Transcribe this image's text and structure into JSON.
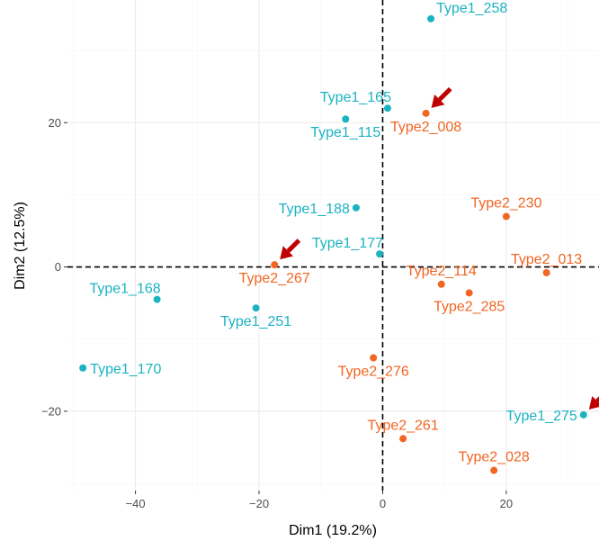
{
  "chart_data": {
    "type": "scatter",
    "title": "",
    "xlabel": "Dim1 (19.2%)",
    "ylabel": "Dim2 (12.5%)",
    "xlim": [
      -51,
      35
    ],
    "ylim": [
      -31,
      37
    ],
    "xticks": [
      -40,
      -20,
      0,
      20
    ],
    "xtick_labels": [
      "−40",
      "−20",
      "0",
      "20"
    ],
    "yticks": [
      -20,
      0,
      20
    ],
    "ytick_labels": [
      "−20",
      "0",
      "20"
    ],
    "grid": true,
    "reference_lines": {
      "x": 0,
      "y": 0,
      "style": "dashed"
    },
    "colors": {
      "Type1": "#1bb3c2",
      "Type2": "#f26522",
      "arrow": "#c00000"
    },
    "points": [
      {
        "label": "Type1_258",
        "group": "Type1",
        "x": 7.8,
        "y": 34.4,
        "label_pos": "upper-right"
      },
      {
        "label": "Type1_165",
        "group": "Type1",
        "x": 0.8,
        "y": 22.0,
        "label_pos": "upper-left"
      },
      {
        "label": "Type1_115",
        "group": "Type1",
        "x": -6.0,
        "y": 20.5,
        "label_pos": "lower-center"
      },
      {
        "label": "Type2_008",
        "group": "Type2",
        "x": 7.0,
        "y": 21.3,
        "label_pos": "lower-center"
      },
      {
        "label": "Type2_230",
        "group": "Type2",
        "x": 20.0,
        "y": 7.0,
        "label_pos": "upper-center"
      },
      {
        "label": "Type1_188",
        "group": "Type1",
        "x": -4.3,
        "y": 8.2,
        "label_pos": "left"
      },
      {
        "label": "Type1_177",
        "group": "Type1",
        "x": -0.5,
        "y": 1.8,
        "label_pos": "upper-left"
      },
      {
        "label": "Type2_013",
        "group": "Type2",
        "x": 26.5,
        "y": -0.8,
        "label_pos": "upper-center"
      },
      {
        "label": "Type2_267",
        "group": "Type2",
        "x": -17.5,
        "y": 0.3,
        "label_pos": "lower-center"
      },
      {
        "label": "Type2_114",
        "group": "Type2",
        "x": 9.5,
        "y": -2.4,
        "label_pos": "upper-center"
      },
      {
        "label": "Type1_168",
        "group": "Type1",
        "x": -36.5,
        "y": -4.5,
        "label_pos": "upper-left"
      },
      {
        "label": "Type2_285",
        "group": "Type2",
        "x": 14.0,
        "y": -3.6,
        "label_pos": "lower-center"
      },
      {
        "label": "Type1_251",
        "group": "Type1",
        "x": -20.5,
        "y": -5.7,
        "label_pos": "lower-center"
      },
      {
        "label": "Type1_170",
        "group": "Type1",
        "x": -48.5,
        "y": -14.0,
        "label_pos": "right"
      },
      {
        "label": "Type2_276",
        "group": "Type2",
        "x": -1.5,
        "y": -12.6,
        "label_pos": "lower-center"
      },
      {
        "label": "Type1_275",
        "group": "Type1",
        "x": 32.5,
        "y": -20.5,
        "label_pos": "left"
      },
      {
        "label": "Type2_261",
        "group": "Type2",
        "x": 3.3,
        "y": -23.8,
        "label_pos": "upper-center"
      },
      {
        "label": "Type2_028",
        "group": "Type2",
        "x": 18.0,
        "y": -28.2,
        "label_pos": "upper-center"
      }
    ],
    "annotations": [
      {
        "type": "arrow",
        "points_to": "Type2_008"
      },
      {
        "type": "arrow",
        "points_to": "Type2_267"
      },
      {
        "type": "arrow",
        "points_to": "Type1_275"
      }
    ]
  }
}
